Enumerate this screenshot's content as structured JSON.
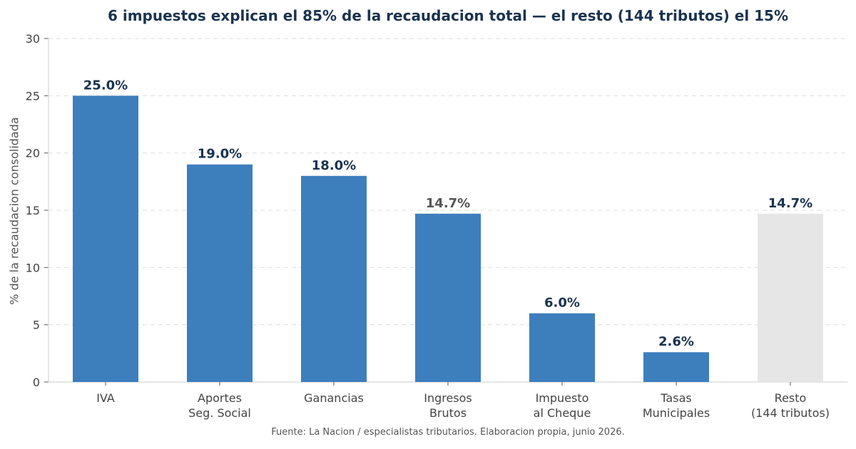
{
  "chart_data": {
    "type": "bar",
    "title": "6 impuestos explican el 85% de la recaudacion total — el resto (144 tributos) el 15%",
    "xlabel": "",
    "ylabel": "% de la recaudacion consolidada",
    "ylim": [
      0,
      30
    ],
    "yticks": [
      "0",
      "5",
      "10",
      "15",
      "20",
      "25",
      "30"
    ],
    "grid": true,
    "categories": [
      [
        "IVA"
      ],
      [
        "Aportes",
        "Seg. Social"
      ],
      [
        "Ganancias"
      ],
      [
        "Ingresos",
        "Brutos"
      ],
      [
        "Impuesto",
        "al Cheque"
      ],
      [
        "Tasas",
        "Municipales"
      ],
      [
        "Resto",
        "(144 tributos)"
      ]
    ],
    "values": [
      25.0,
      19.0,
      18.0,
      14.7,
      6.0,
      2.6,
      14.7
    ],
    "value_labels": [
      "25.0%",
      "19.0%",
      "18.0%",
      "14.7%",
      "6.0%",
      "2.6%",
      "14.7%"
    ],
    "bar_colors": [
      "#3d7ebd",
      "#3d7ebd",
      "#3d7ebd",
      "#3d7ebd",
      "#3d7ebd",
      "#3d7ebd",
      "#e6e6e6"
    ],
    "label_colors": [
      "#1a3350",
      "#1a3350",
      "#1a3350",
      "#555555",
      "#1a3350",
      "#1a3350",
      "#1a3350"
    ],
    "source": "Fuente: La Nacion / especialistas tributarios. Elaboracion propia, junio 2026."
  }
}
